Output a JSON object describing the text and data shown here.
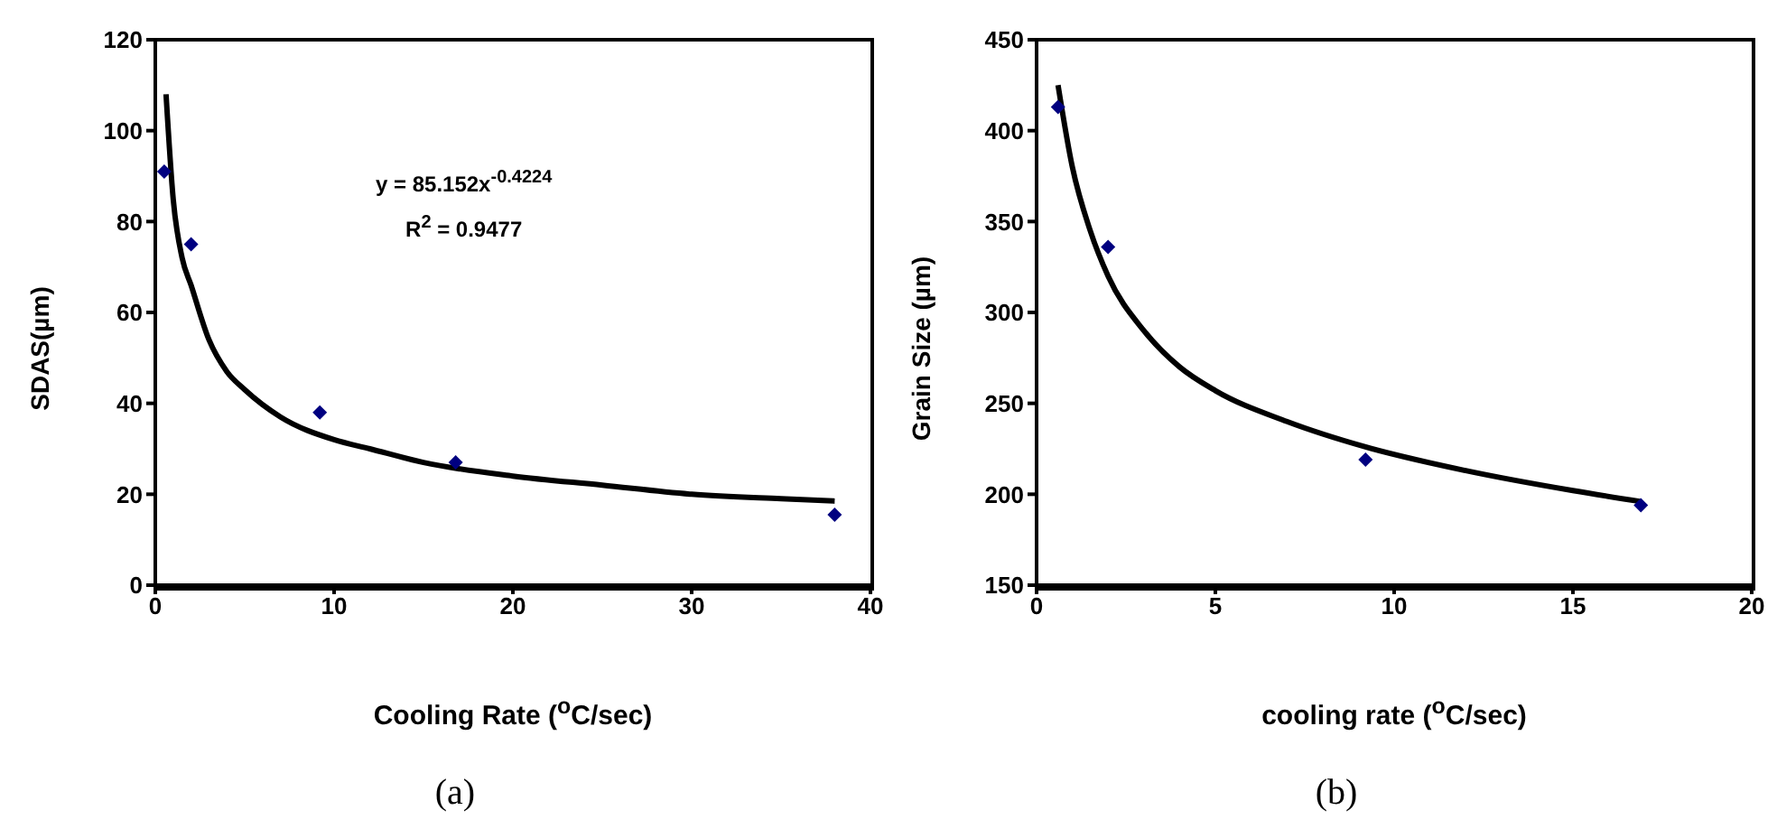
{
  "chart_data": [
    {
      "type": "scatter",
      "xlabel": "Cooling Rate ($^{o}$C/sec)",
      "ylabel": "SDAS(µm)",
      "xlim": [
        0,
        40
      ],
      "xticks": [
        0,
        10,
        20,
        30,
        40
      ],
      "ylim": [
        0,
        120
      ],
      "yticks": [
        0,
        20,
        40,
        60,
        80,
        100,
        120
      ],
      "grid": false,
      "legend": false,
      "annotations": [
        "y = 85.152x$^{-0.4224}$",
        "R$^{2}$ = 0.9477",
        "(a)"
      ],
      "series": [
        {
          "type": "scatter",
          "color": "#000080",
          "marker": "diamond",
          "x": [
            0.5,
            2,
            9.2,
            16.8,
            38
          ],
          "values": [
            91,
            75,
            38,
            27,
            15.5
          ]
        },
        {
          "type": "line",
          "color": "#000000",
          "marker": "none",
          "line_style": "solid",
          "x": [
            0.6,
            1,
            1.5,
            2,
            3,
            4,
            5,
            7,
            10,
            12,
            15,
            20,
            25,
            30,
            35,
            38
          ],
          "values": [
            108,
            85,
            72,
            66,
            54,
            47,
            43,
            37,
            32,
            30,
            27,
            24,
            22,
            20,
            19,
            18.5
          ]
        }
      ]
    },
    {
      "type": "scatter",
      "xlabel": "cooling rate ($^{o}$C/sec)",
      "ylabel": "Grain Size (µm)",
      "xlim": [
        0,
        20
      ],
      "xticks": [
        0,
        5,
        10,
        15,
        20
      ],
      "ylim": [
        150,
        450
      ],
      "yticks": [
        150,
        200,
        250,
        300,
        350,
        400,
        450
      ],
      "grid": false,
      "legend": false,
      "annotations": [
        "(b)"
      ],
      "series": [
        {
          "type": "scatter",
          "color": "#000080",
          "marker": "diamond",
          "x": [
            0.6,
            2,
            9.2,
            16.9
          ],
          "values": [
            413,
            336,
            219,
            194
          ]
        },
        {
          "type": "line",
          "color": "#000000",
          "marker": "none",
          "line_style": "solid",
          "x": [
            0.6,
            1,
            1.5,
            2,
            3,
            4,
            5,
            7,
            9.2,
            12,
            15,
            16.9
          ],
          "values": [
            425,
            380,
            345,
            320,
            290,
            270,
            257,
            240,
            226,
            213,
            202,
            196
          ]
        }
      ]
    }
  ]
}
